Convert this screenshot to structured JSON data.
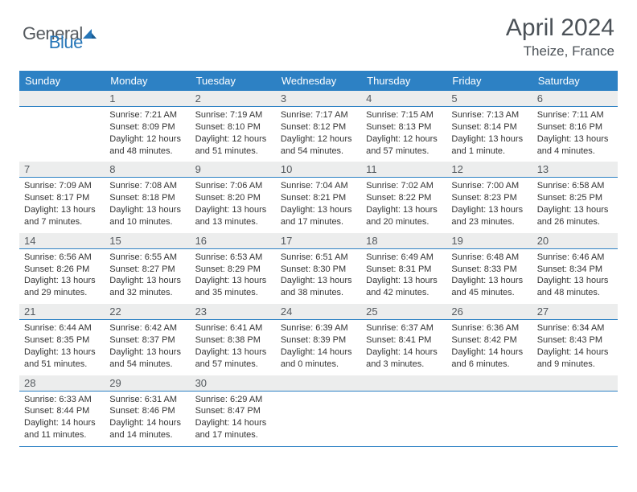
{
  "logo": {
    "text1": "General",
    "text2": "Blue"
  },
  "title": "April 2024",
  "location": "Theize, France",
  "colors": {
    "header_bg": "#2d81c4",
    "header_fg": "#ffffff",
    "daynum_bg": "#eceded",
    "daynum_fg": "#555a5f",
    "body_text": "#343434",
    "rule": "#2d81c4",
    "title_fg": "#4b5157",
    "logo_gray": "#555a5f",
    "logo_blue": "#2676b8"
  },
  "days_of_week": [
    "Sunday",
    "Monday",
    "Tuesday",
    "Wednesday",
    "Thursday",
    "Friday",
    "Saturday"
  ],
  "weeks": [
    {
      "nums": [
        "",
        "1",
        "2",
        "3",
        "4",
        "5",
        "6"
      ],
      "cells": [
        null,
        {
          "sr": "7:21 AM",
          "ss": "8:09 PM",
          "dl": "12 hours and 48 minutes."
        },
        {
          "sr": "7:19 AM",
          "ss": "8:10 PM",
          "dl": "12 hours and 51 minutes."
        },
        {
          "sr": "7:17 AM",
          "ss": "8:12 PM",
          "dl": "12 hours and 54 minutes."
        },
        {
          "sr": "7:15 AM",
          "ss": "8:13 PM",
          "dl": "12 hours and 57 minutes."
        },
        {
          "sr": "7:13 AM",
          "ss": "8:14 PM",
          "dl": "13 hours and 1 minute."
        },
        {
          "sr": "7:11 AM",
          "ss": "8:16 PM",
          "dl": "13 hours and 4 minutes."
        }
      ]
    },
    {
      "nums": [
        "7",
        "8",
        "9",
        "10",
        "11",
        "12",
        "13"
      ],
      "cells": [
        {
          "sr": "7:09 AM",
          "ss": "8:17 PM",
          "dl": "13 hours and 7 minutes."
        },
        {
          "sr": "7:08 AM",
          "ss": "8:18 PM",
          "dl": "13 hours and 10 minutes."
        },
        {
          "sr": "7:06 AM",
          "ss": "8:20 PM",
          "dl": "13 hours and 13 minutes."
        },
        {
          "sr": "7:04 AM",
          "ss": "8:21 PM",
          "dl": "13 hours and 17 minutes."
        },
        {
          "sr": "7:02 AM",
          "ss": "8:22 PM",
          "dl": "13 hours and 20 minutes."
        },
        {
          "sr": "7:00 AM",
          "ss": "8:23 PM",
          "dl": "13 hours and 23 minutes."
        },
        {
          "sr": "6:58 AM",
          "ss": "8:25 PM",
          "dl": "13 hours and 26 minutes."
        }
      ]
    },
    {
      "nums": [
        "14",
        "15",
        "16",
        "17",
        "18",
        "19",
        "20"
      ],
      "cells": [
        {
          "sr": "6:56 AM",
          "ss": "8:26 PM",
          "dl": "13 hours and 29 minutes."
        },
        {
          "sr": "6:55 AM",
          "ss": "8:27 PM",
          "dl": "13 hours and 32 minutes."
        },
        {
          "sr": "6:53 AM",
          "ss": "8:29 PM",
          "dl": "13 hours and 35 minutes."
        },
        {
          "sr": "6:51 AM",
          "ss": "8:30 PM",
          "dl": "13 hours and 38 minutes."
        },
        {
          "sr": "6:49 AM",
          "ss": "8:31 PM",
          "dl": "13 hours and 42 minutes."
        },
        {
          "sr": "6:48 AM",
          "ss": "8:33 PM",
          "dl": "13 hours and 45 minutes."
        },
        {
          "sr": "6:46 AM",
          "ss": "8:34 PM",
          "dl": "13 hours and 48 minutes."
        }
      ]
    },
    {
      "nums": [
        "21",
        "22",
        "23",
        "24",
        "25",
        "26",
        "27"
      ],
      "cells": [
        {
          "sr": "6:44 AM",
          "ss": "8:35 PM",
          "dl": "13 hours and 51 minutes."
        },
        {
          "sr": "6:42 AM",
          "ss": "8:37 PM",
          "dl": "13 hours and 54 minutes."
        },
        {
          "sr": "6:41 AM",
          "ss": "8:38 PM",
          "dl": "13 hours and 57 minutes."
        },
        {
          "sr": "6:39 AM",
          "ss": "8:39 PM",
          "dl": "14 hours and 0 minutes."
        },
        {
          "sr": "6:37 AM",
          "ss": "8:41 PM",
          "dl": "14 hours and 3 minutes."
        },
        {
          "sr": "6:36 AM",
          "ss": "8:42 PM",
          "dl": "14 hours and 6 minutes."
        },
        {
          "sr": "6:34 AM",
          "ss": "8:43 PM",
          "dl": "14 hours and 9 minutes."
        }
      ]
    },
    {
      "nums": [
        "28",
        "29",
        "30",
        "",
        "",
        "",
        ""
      ],
      "cells": [
        {
          "sr": "6:33 AM",
          "ss": "8:44 PM",
          "dl": "14 hours and 11 minutes."
        },
        {
          "sr": "6:31 AM",
          "ss": "8:46 PM",
          "dl": "14 hours and 14 minutes."
        },
        {
          "sr": "6:29 AM",
          "ss": "8:47 PM",
          "dl": "14 hours and 17 minutes."
        },
        null,
        null,
        null,
        null
      ]
    }
  ],
  "labels": {
    "sunrise": "Sunrise: ",
    "sunset": "Sunset: ",
    "daylight": "Daylight: "
  }
}
